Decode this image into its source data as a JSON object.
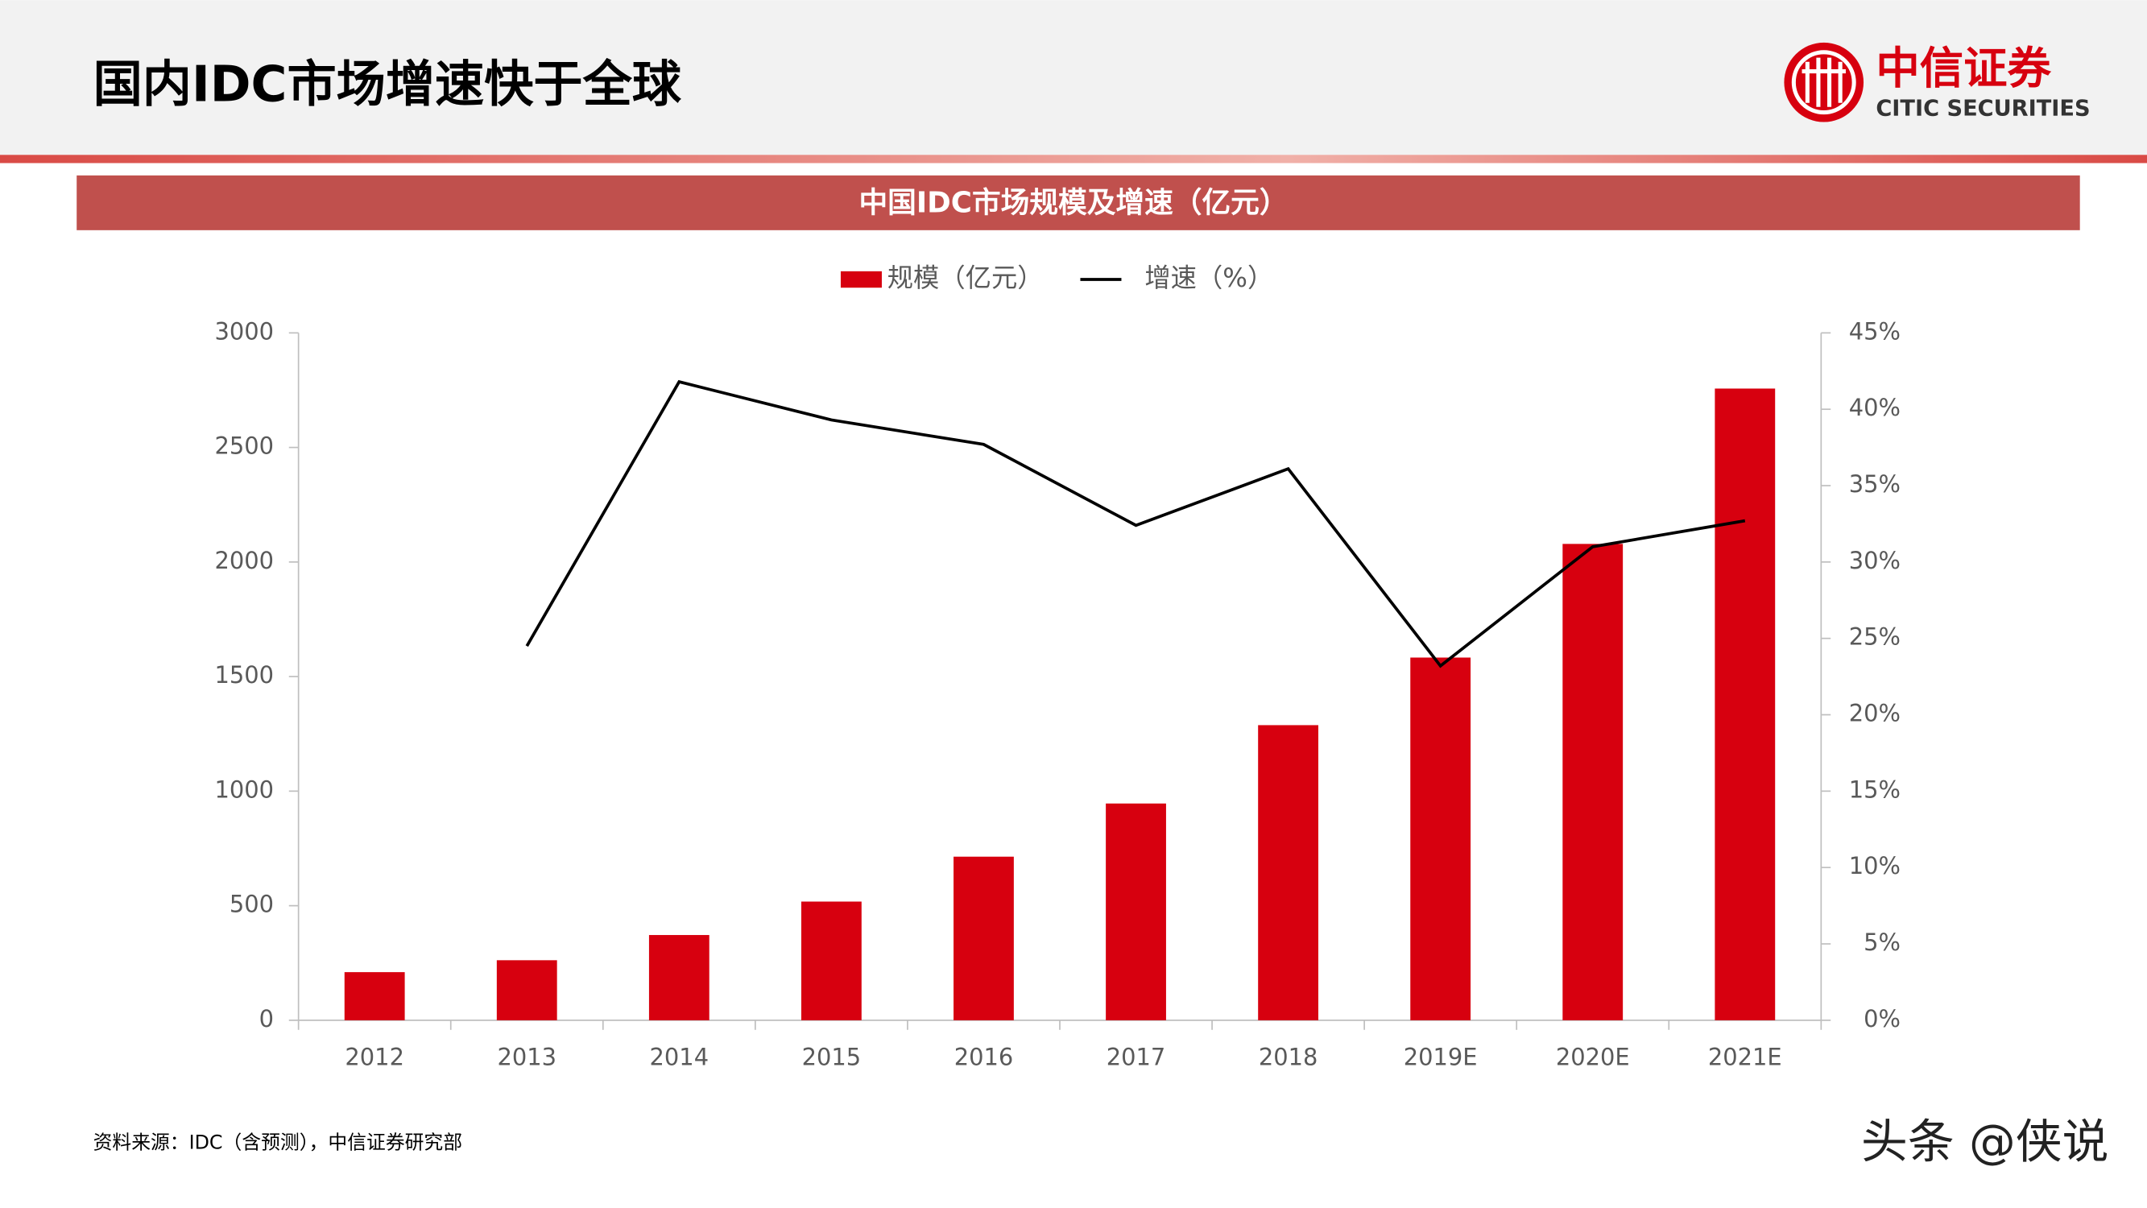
{
  "header": {
    "title": "国内IDC市场增速快于全球",
    "logo_cn": "中信证券",
    "logo_en": "CITIC SECURITIES"
  },
  "chart_data": {
    "type": "bar",
    "title": "中国IDC市场规模及增速（亿元）",
    "categories": [
      "2012",
      "2013",
      "2014",
      "2015",
      "2016",
      "2017",
      "2018",
      "2019E",
      "2020E",
      "2021E"
    ],
    "series": [
      {
        "name": "规模（亿元）",
        "type": "bar",
        "color": "#d7000f",
        "values": [
          210,
          262,
          372,
          518,
          714,
          946,
          1288,
          1583,
          2079,
          2757
        ]
      },
      {
        "name": "增速（%）",
        "type": "line",
        "axis": "y2",
        "color": "#000000",
        "values": [
          null,
          24.5,
          41.8,
          39.3,
          37.7,
          32.4,
          36.1,
          23.2,
          31.0,
          32.7
        ]
      }
    ],
    "ylim": [
      0,
      3000
    ],
    "yticks": [
      0,
      500,
      1000,
      1500,
      2000,
      2500,
      3000
    ],
    "y2lim": [
      0,
      45
    ],
    "y2ticks": [
      {
        "value": 0,
        "label": "0%"
      },
      {
        "value": 5,
        "label": "5%"
      },
      {
        "value": 10,
        "label": "10%"
      },
      {
        "value": 15,
        "label": "15%"
      },
      {
        "value": 20,
        "label": "20%"
      },
      {
        "value": 25,
        "label": "25%"
      },
      {
        "value": 30,
        "label": "30%"
      },
      {
        "value": 35,
        "label": "35%"
      },
      {
        "value": 40,
        "label": "40%"
      },
      {
        "value": 45,
        "label": "45%"
      }
    ],
    "legend": "top",
    "grid": false
  },
  "footer": {
    "source": "资料来源：IDC（含预测），中信证券研究部",
    "watermark": "头条 @侠说"
  }
}
